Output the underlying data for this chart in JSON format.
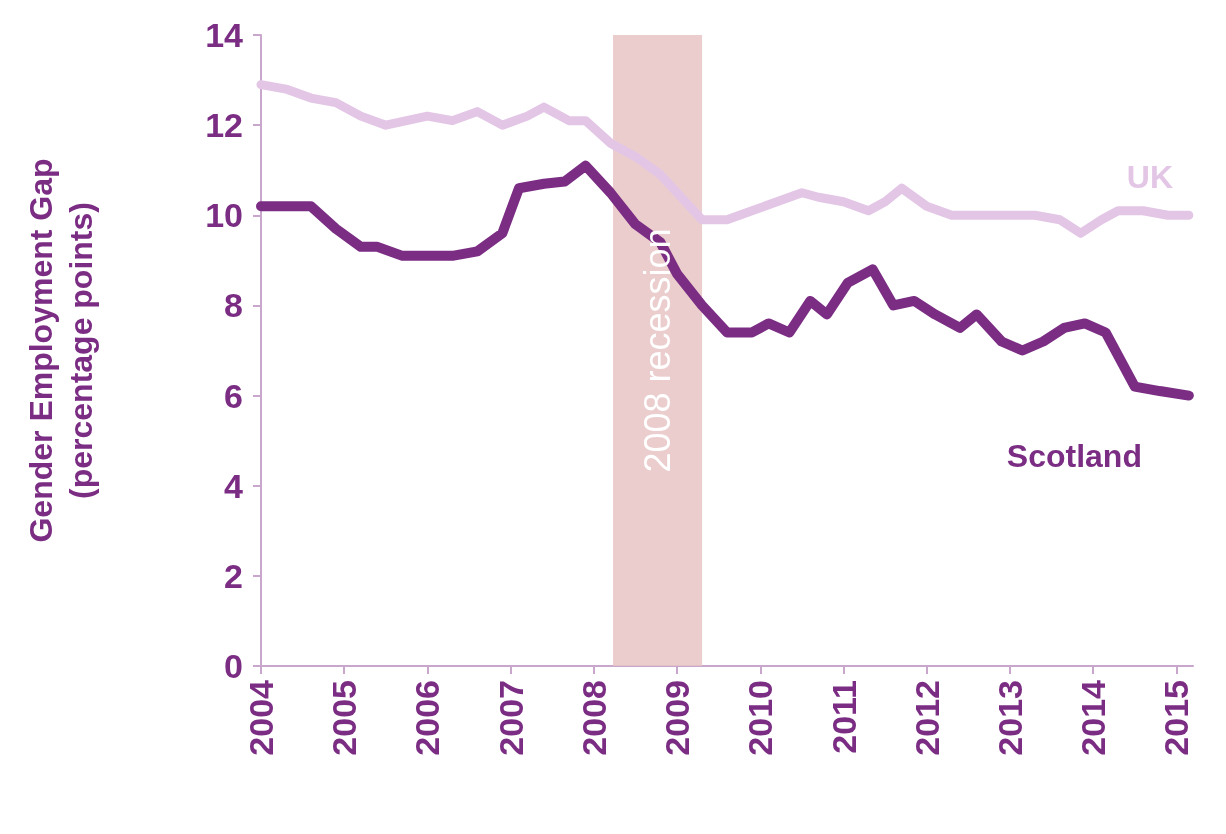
{
  "chart_data": {
    "type": "line",
    "ylabel": "Gender Employment Gap\n(percentage points)",
    "xlim": [
      2004,
      2015.2
    ],
    "xticks": [
      2004,
      2005,
      2006,
      2007,
      2008,
      2009,
      2010,
      2011,
      2012,
      2013,
      2014,
      2015
    ],
    "ylim": [
      0,
      14
    ],
    "yticks": [
      0,
      2,
      4,
      6,
      8,
      10,
      12,
      14
    ],
    "grid": false,
    "legend": false,
    "marker": "none",
    "line_style": "solid",
    "series": [
      {
        "name": "UK",
        "color": "#e3c6e6",
        "x": [
          2004.0,
          2004.3,
          2004.6,
          2004.9,
          2005.2,
          2005.5,
          2005.75,
          2006.0,
          2006.3,
          2006.6,
          2006.9,
          2007.2,
          2007.4,
          2007.7,
          2007.9,
          2008.2,
          2008.5,
          2008.8,
          2009.0,
          2009.3,
          2009.6,
          2009.9,
          2010.2,
          2010.5,
          2010.7,
          2011.0,
          2011.3,
          2011.5,
          2011.7,
          2012.0,
          2012.3,
          2012.6,
          2013.0,
          2013.3,
          2013.6,
          2013.85,
          2014.1,
          2014.3,
          2014.6,
          2014.9,
          2015.15
        ],
        "values": [
          12.9,
          12.8,
          12.6,
          12.5,
          12.2,
          12.0,
          12.1,
          12.2,
          12.1,
          12.3,
          12.0,
          12.2,
          12.4,
          12.1,
          12.1,
          11.6,
          11.3,
          10.9,
          10.5,
          9.9,
          9.9,
          10.1,
          10.3,
          10.5,
          10.4,
          10.3,
          10.1,
          10.3,
          10.6,
          10.2,
          10.0,
          10.0,
          10.0,
          10.0,
          9.9,
          9.6,
          9.9,
          10.1,
          10.1,
          10.0,
          10.0
        ]
      },
      {
        "name": "Scotland",
        "color": "#7b2d84",
        "x": [
          2004.0,
          2004.3,
          2004.6,
          2004.9,
          2005.2,
          2005.4,
          2005.7,
          2006.0,
          2006.3,
          2006.6,
          2006.9,
          2007.1,
          2007.4,
          2007.65,
          2007.9,
          2008.2,
          2008.5,
          2008.8,
          2009.0,
          2009.3,
          2009.6,
          2009.9,
          2010.1,
          2010.35,
          2010.6,
          2010.8,
          2011.05,
          2011.35,
          2011.6,
          2011.85,
          2012.1,
          2012.4,
          2012.6,
          2012.9,
          2013.15,
          2013.4,
          2013.65,
          2013.9,
          2014.15,
          2014.5,
          2014.8,
          2015.15
        ],
        "values": [
          10.2,
          10.2,
          10.2,
          9.7,
          9.3,
          9.3,
          9.1,
          9.1,
          9.1,
          9.2,
          9.6,
          10.6,
          10.7,
          10.75,
          11.1,
          10.5,
          9.8,
          9.4,
          8.7,
          8.0,
          7.4,
          7.4,
          7.6,
          7.4,
          8.1,
          7.8,
          8.5,
          8.8,
          8.0,
          8.1,
          7.8,
          7.5,
          7.8,
          7.2,
          7.0,
          7.2,
          7.5,
          7.6,
          7.4,
          6.2,
          6.1,
          6.0
        ]
      }
    ],
    "bands": [
      {
        "axis": "x",
        "from": 2008.23,
        "to": 2009.3,
        "label": "2008 recession",
        "color": "#e8c4c4"
      }
    ]
  }
}
